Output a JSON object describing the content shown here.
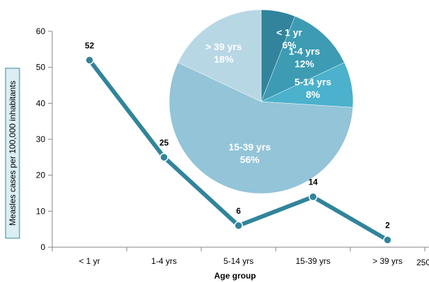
{
  "chart_data": [
    {
      "type": "line",
      "categories": [
        "< 1 yr",
        "1-4 yrs",
        "5-14 yrs",
        "15-39 yrs",
        "> 39 yrs"
      ],
      "series": [
        {
          "values": [
            52,
            25,
            6,
            14,
            2
          ],
          "data_labels": [
            "52",
            "25",
            "6",
            "14",
            "2"
          ],
          "color": "#31849b"
        }
      ],
      "ylabel": "Measles cases per 100,000 inhabitants",
      "xlabel": "Age group",
      "ylim": [
        0,
        60
      ],
      "yticks": [
        0,
        10,
        20,
        30,
        40,
        50,
        60
      ],
      "ytick_labels": [
        "0",
        "10",
        "20",
        "30",
        "40",
        "50",
        "60"
      ],
      "extra_tick_label": "250",
      "grid": false
    },
    {
      "type": "pie",
      "slices": [
        {
          "label": "< 1 yr",
          "value": 6,
          "value_label": "6%",
          "color": "#31849b"
        },
        {
          "label": "1-4 yrs",
          "value": 12,
          "value_label": "12%",
          "color": "#3d9bb3"
        },
        {
          "label": "5-14 yrs",
          "value": 8,
          "value_label": "8%",
          "color": "#4bb1cc"
        },
        {
          "label": "15-39 yrs",
          "value": 56,
          "value_label": "56%",
          "color": "#93c4d8"
        },
        {
          "label": "> 39 yrs",
          "value": 18,
          "value_label": "18%",
          "color": "#b8d7e5"
        }
      ]
    }
  ]
}
